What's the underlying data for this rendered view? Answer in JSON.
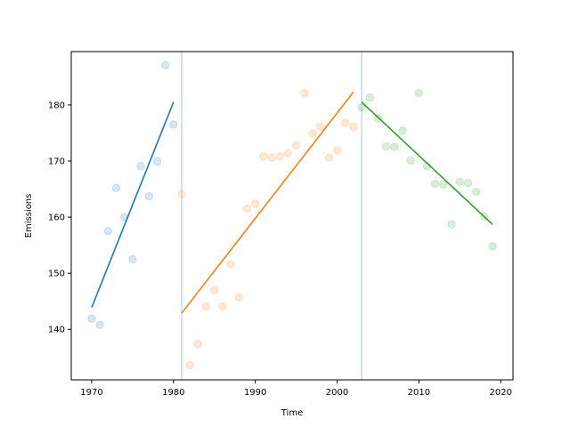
{
  "chart_data": {
    "type": "scatter",
    "xlabel": "Time",
    "ylabel": "Emissions",
    "xlim": [
      1967.5,
      2021.5
    ],
    "ylim": [
      131,
      189.5
    ],
    "xticks": [
      1970,
      1980,
      1990,
      2000,
      2010,
      2020
    ],
    "yticks": [
      140,
      150,
      160,
      170,
      180
    ],
    "grid": false,
    "breakpoints": [
      1981,
      2003
    ],
    "breakpoint_color": "#c6dbe9",
    "series": [
      {
        "color": "#1f77b4",
        "points": [
          [
            1970,
            141.9
          ],
          [
            1971,
            140.8
          ],
          [
            1972,
            157.5
          ],
          [
            1973,
            165.2
          ],
          [
            1974,
            160.0
          ],
          [
            1975,
            152.5
          ],
          [
            1976,
            169.1
          ],
          [
            1977,
            163.7
          ],
          [
            1978,
            169.9
          ],
          [
            1979,
            187.1
          ],
          [
            1980,
            176.5
          ]
        ],
        "fit": [
          [
            1970,
            143.9
          ],
          [
            1980,
            180.5
          ]
        ]
      },
      {
        "color": "#ff7f0e",
        "points": [
          [
            1981,
            164.1
          ],
          [
            1982,
            133.6
          ],
          [
            1983,
            137.4
          ],
          [
            1984,
            144.1
          ],
          [
            1985,
            147.0
          ],
          [
            1986,
            144.1
          ],
          [
            1987,
            151.6
          ],
          [
            1988,
            145.7
          ],
          [
            1989,
            161.5
          ],
          [
            1990,
            162.4
          ],
          [
            1991,
            170.8
          ],
          [
            1992,
            170.6
          ],
          [
            1993,
            170.8
          ],
          [
            1994,
            171.4
          ],
          [
            1995,
            172.8
          ],
          [
            1996,
            182.1
          ],
          [
            1997,
            174.9
          ],
          [
            1998,
            176.1
          ],
          [
            1999,
            170.6
          ],
          [
            2000,
            171.9
          ],
          [
            2001,
            176.8
          ],
          [
            2002,
            176.1
          ]
        ],
        "fit": [
          [
            1981,
            142.9
          ],
          [
            2002,
            182.3
          ]
        ]
      },
      {
        "color": "#2ca02c",
        "points": [
          [
            2003,
            179.5
          ],
          [
            2004,
            181.3
          ],
          [
            2005,
            177.6
          ],
          [
            2006,
            172.6
          ],
          [
            2007,
            172.5
          ],
          [
            2008,
            175.4
          ],
          [
            2009,
            170.1
          ],
          [
            2010,
            182.1
          ],
          [
            2011,
            169.1
          ],
          [
            2012,
            165.9
          ],
          [
            2013,
            165.8
          ],
          [
            2014,
            158.7
          ],
          [
            2015,
            166.3
          ],
          [
            2016,
            166.1
          ],
          [
            2017,
            164.5
          ],
          [
            2018,
            160.1
          ],
          [
            2019,
            154.8
          ]
        ],
        "fit": [
          [
            2003,
            180.5
          ],
          [
            2019,
            158.7
          ]
        ]
      }
    ]
  }
}
